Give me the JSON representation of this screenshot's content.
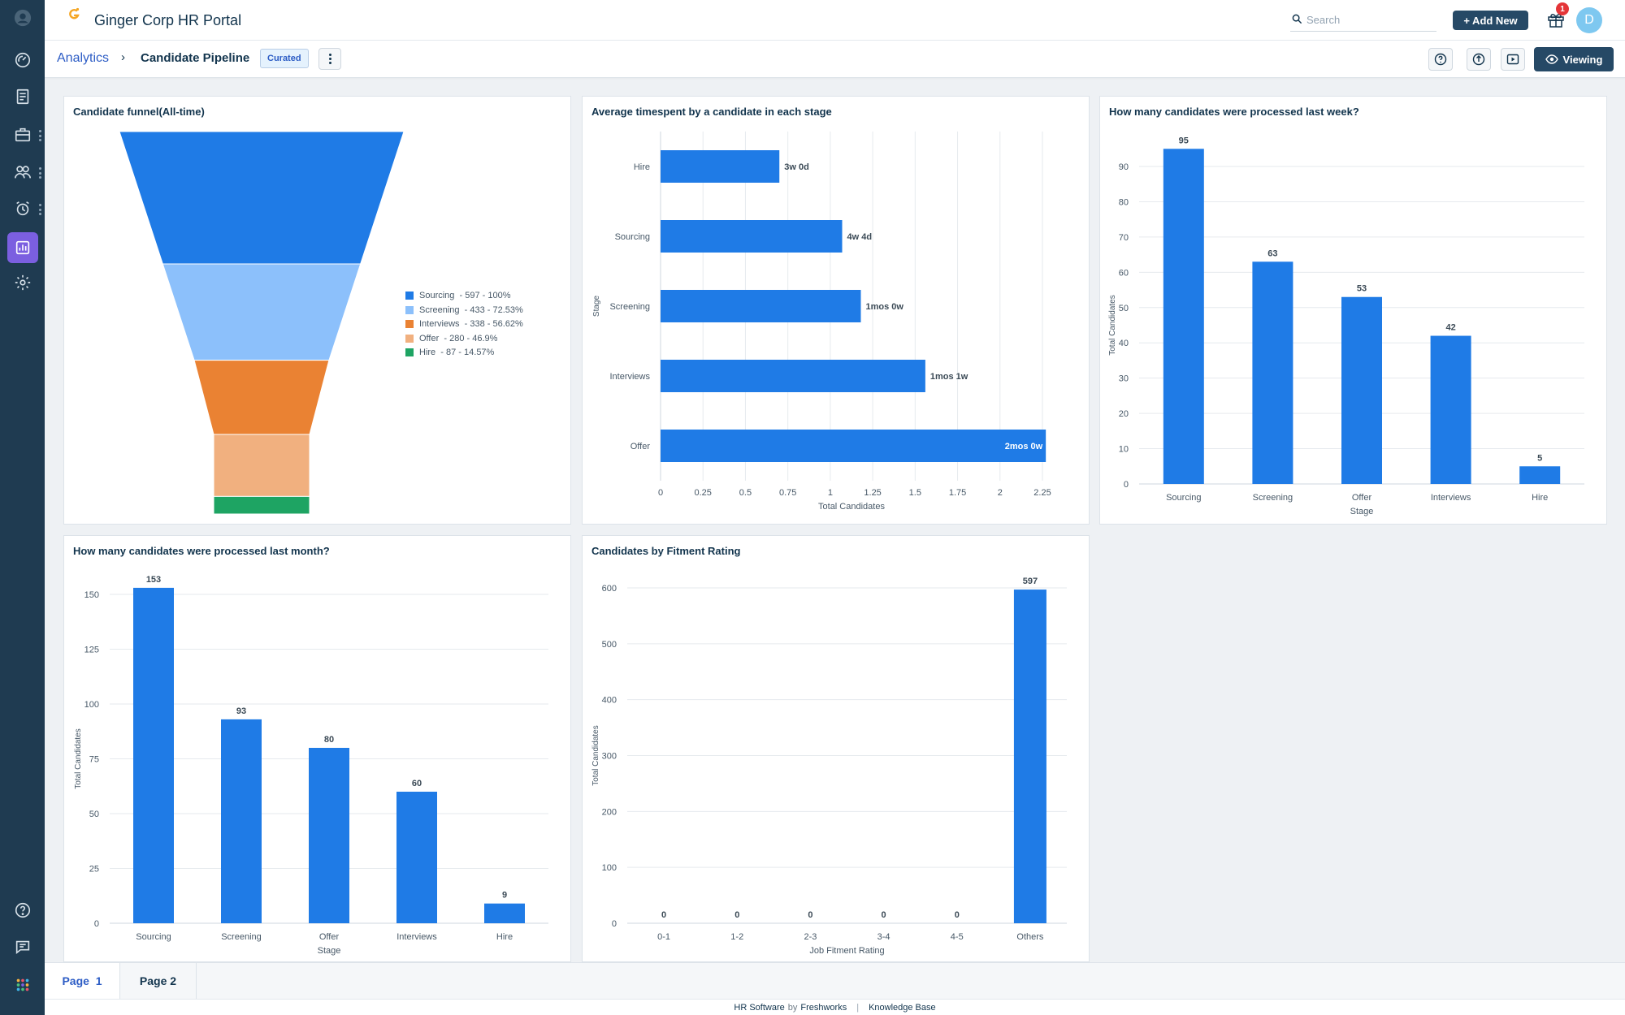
{
  "app": {
    "title": "Ginger Corp HR Portal"
  },
  "search": {
    "placeholder": "Search"
  },
  "header": {
    "add_new_label": "+ Add New",
    "gift_badge_count": "1",
    "avatar_initial": "D"
  },
  "breadcrumb": {
    "root": "Analytics",
    "separator": "›",
    "current": "Candidate Pipeline",
    "badge": "Curated"
  },
  "toolbar": {
    "viewing_label": "Viewing"
  },
  "sidebar": {
    "items": [
      {
        "icon": "profile-icon"
      },
      {
        "icon": "dashboard-icon"
      },
      {
        "icon": "notes-icon"
      },
      {
        "icon": "briefcase-icon",
        "has_more": true
      },
      {
        "icon": "people-icon",
        "has_more": true
      },
      {
        "icon": "alarm-icon",
        "has_more": true
      },
      {
        "icon": "analytics-icon",
        "active": true
      },
      {
        "icon": "settings-icon"
      }
    ],
    "bottom": [
      {
        "icon": "help-icon"
      },
      {
        "icon": "chat-icon"
      },
      {
        "icon": "apps-grid-icon"
      }
    ]
  },
  "colors": {
    "bar": "#1f7be6",
    "funnel": [
      "#1f7be6",
      "#8cc0fb",
      "#ea8233",
      "#f1b07f",
      "#1ea463"
    ],
    "sidebar_bg": "#1f3b51",
    "active_nav": "#7b5fe0"
  },
  "widgets": {
    "funnel": {
      "title": "Candidate funnel(All-time)",
      "legend": [
        {
          "label": "Sourcing",
          "detail": "- 597 - 100%"
        },
        {
          "label": "Screening",
          "detail": "- 433 - 72.53%"
        },
        {
          "label": "Interviews",
          "detail": "- 338 - 56.62%"
        },
        {
          "label": "Offer",
          "detail": "- 280 - 46.9%"
        },
        {
          "label": "Hire",
          "detail": "- 87 - 14.57%"
        }
      ]
    },
    "time_spent": {
      "title": "Average timespent by a candidate in each stage"
    },
    "last_week": {
      "title": "How many candidates were processed last week?"
    },
    "last_month": {
      "title": "How many candidates were processed last month?"
    },
    "fitment": {
      "title": "Candidates by Fitment Rating"
    }
  },
  "chart_data": [
    {
      "id": "funnel",
      "type": "funnel",
      "title": "Candidate funnel(All-time)",
      "categories": [
        "Sourcing",
        "Screening",
        "Interviews",
        "Offer",
        "Hire"
      ],
      "values": [
        597,
        433,
        338,
        280,
        87
      ],
      "percents": [
        100,
        72.53,
        56.62,
        46.9,
        14.57
      ],
      "legend_position": "right"
    },
    {
      "id": "time_spent",
      "type": "bar",
      "orientation": "horizontal",
      "title": "Average timespent by a candidate in each stage",
      "categories": [
        "Hire",
        "Sourcing",
        "Screening",
        "Interviews",
        "Offer"
      ],
      "values": [
        0.7,
        1.07,
        1.18,
        1.56,
        2.27
      ],
      "data_labels": [
        "3w 0d",
        "4w 4d",
        "1mos 0w",
        "1mos 1w",
        "2mos 0w"
      ],
      "xlabel": "Total Candidates",
      "ylabel": "Stage",
      "xlim": [
        0,
        2.25
      ],
      "xticks": [
        "0",
        "0.25",
        "0.5",
        "0.75",
        "1",
        "1.25",
        "1.5",
        "1.75",
        "2",
        "2.25"
      ],
      "grid": true
    },
    {
      "id": "last_week",
      "type": "bar",
      "title": "How many candidates were processed last week?",
      "categories": [
        "Sourcing",
        "Screening",
        "Offer Stage",
        "Interviews",
        "Hire"
      ],
      "category_lines": [
        [
          "Sourcing"
        ],
        [
          "Screening"
        ],
        [
          "Offer",
          "Stage"
        ],
        [
          "Interviews"
        ],
        [
          "Hire"
        ]
      ],
      "values": [
        95,
        63,
        53,
        42,
        5
      ],
      "xlabel": "",
      "ylabel": "Total Candidates",
      "ylim": [
        0,
        90
      ],
      "yticks": [
        "0",
        "10",
        "20",
        "30",
        "40",
        "50",
        "60",
        "70",
        "80",
        "90"
      ],
      "grid": true
    },
    {
      "id": "last_month",
      "type": "bar",
      "title": "How many candidates were processed last month?",
      "categories": [
        "Sourcing",
        "Screening",
        "Offer Stage",
        "Interviews",
        "Hire"
      ],
      "category_lines": [
        [
          "Sourcing"
        ],
        [
          "Screening"
        ],
        [
          "Offer",
          "Stage"
        ],
        [
          "Interviews"
        ],
        [
          "Hire"
        ]
      ],
      "values": [
        153,
        93,
        80,
        60,
        9
      ],
      "xlabel": "",
      "ylabel": "Total Candidates",
      "ylim": [
        0,
        150
      ],
      "yticks": [
        "0",
        "25",
        "50",
        "75",
        "100",
        "125",
        "150"
      ],
      "grid": true
    },
    {
      "id": "fitment",
      "type": "bar",
      "title": "Candidates by Fitment Rating",
      "categories": [
        "0-1",
        "1-2",
        "2-3",
        "3-4",
        "4-5",
        "Others"
      ],
      "category_lines": [
        [
          "0-1"
        ],
        [
          "1-2"
        ],
        [
          "2-3"
        ],
        [
          "3-4"
        ],
        [
          "4-5"
        ],
        [
          "Others"
        ]
      ],
      "values": [
        0,
        0,
        0,
        0,
        0,
        597
      ],
      "xlabel": "Job Fitment Rating",
      "ylabel": "Total Candidates",
      "ylim": [
        0,
        600
      ],
      "yticks": [
        "0",
        "100",
        "200",
        "300",
        "400",
        "500",
        "600"
      ],
      "grid": true
    }
  ],
  "pages": {
    "tabs": [
      {
        "label": "Page",
        "number": "1",
        "active": true
      },
      {
        "label": "Page 2",
        "active": false
      }
    ]
  },
  "footer": {
    "product": "HR Software",
    "by": "by",
    "vendor": "Freshworks",
    "separator": "|",
    "link": "Knowledge Base"
  }
}
